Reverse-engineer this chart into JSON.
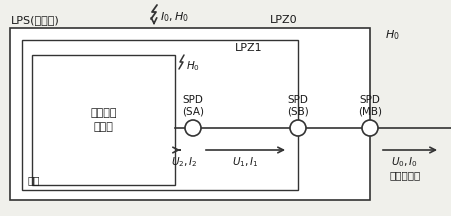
{
  "bg_color": "#f0f0eb",
  "label_lps": "LPS(无屏蔽)",
  "label_lpz0": "LPZ0",
  "label_lpz1": "LPZ1",
  "label_H0_right": "$H_0$",
  "label_I0H0": "$I_0,H_0$",
  "label_H0_inner": "$H_0$",
  "label_spd_sa": "SPD\n(SA)",
  "label_spd_sb": "SPD\n(SB)",
  "label_spd_mb": "SPD\n(MB)",
  "label_device": "需要保护\n的设备",
  "label_shell": "外壳",
  "label_U2I2": "$U_2,I_2$",
  "label_U1I1": "$U_1,I_1$",
  "label_U0I0": "$U_0,I_0$",
  "label_partial": "部分雷电流",
  "line_color": "#333333",
  "text_color": "#1a1a1a",
  "font_size_main": 8.0,
  "font_size_small": 7.5
}
